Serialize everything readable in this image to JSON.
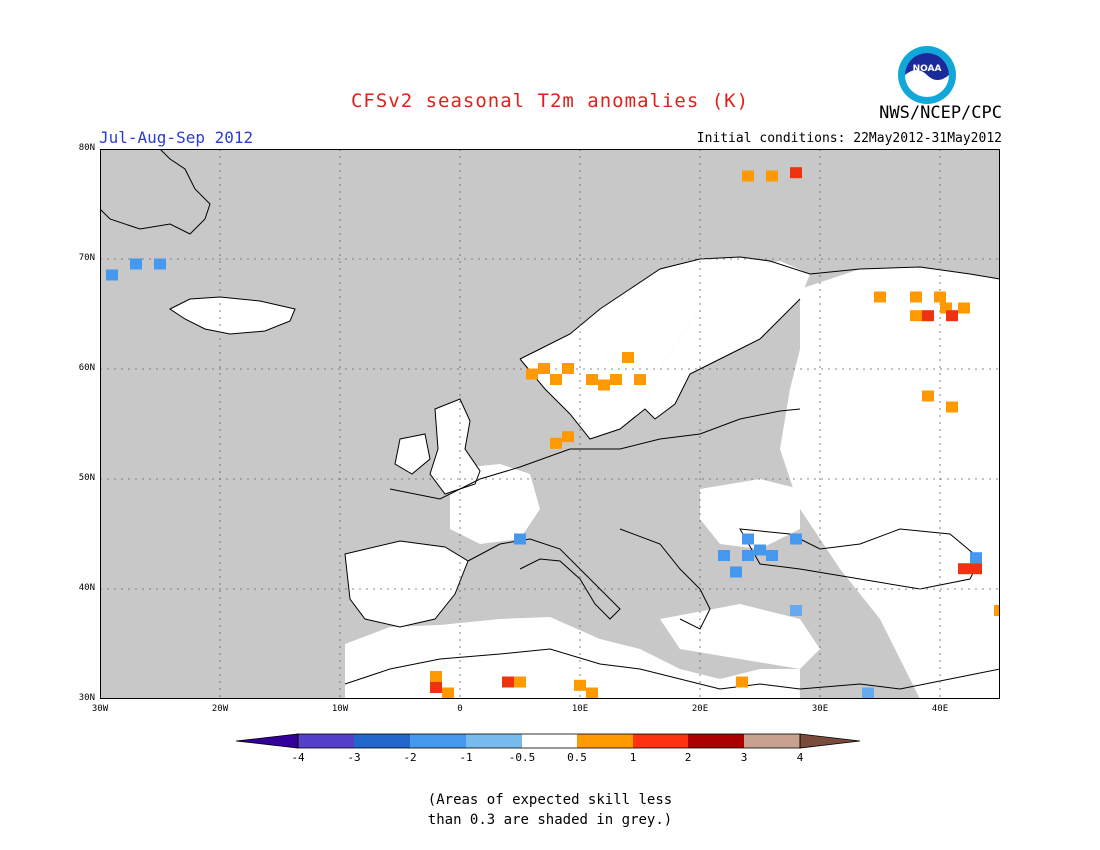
{
  "header": {
    "title": "CFSv2 seasonal T2m anomalies (K)",
    "organization": "NWS/NCEP/CPC",
    "season": "Jul-Aug-Sep 2012",
    "initial_conditions": "Initial conditions: 22May2012-31May2012",
    "logo_text": "NOAA"
  },
  "map": {
    "lon_range": [
      -30,
      45
    ],
    "lat_range": [
      30,
      80
    ],
    "lat_labels": [
      "80N",
      "70N",
      "60N",
      "50N",
      "40N",
      "30N"
    ],
    "lon_labels": [
      "30W",
      "20W",
      "10W",
      "0",
      "10E",
      "20E",
      "30E",
      "40E"
    ],
    "ocean_color": "#c8c8c8",
    "land_color": "#ffffff",
    "anomaly_cells": [
      {
        "lon": -29,
        "lat": 68.5,
        "color": "#4499ee"
      },
      {
        "lon": -27,
        "lat": 69.5,
        "color": "#4499ee"
      },
      {
        "lon": -25,
        "lat": 69.5,
        "color": "#4499ee"
      },
      {
        "lon": 6,
        "lat": 59.5,
        "color": "#ff9900"
      },
      {
        "lon": 7,
        "lat": 60.0,
        "color": "#ff9900"
      },
      {
        "lon": 8,
        "lat": 59.0,
        "color": "#ff9900"
      },
      {
        "lon": 9,
        "lat": 60.0,
        "color": "#ff9900"
      },
      {
        "lon": 11,
        "lat": 59.0,
        "color": "#ff9900"
      },
      {
        "lon": 12,
        "lat": 58.5,
        "color": "#ff9900"
      },
      {
        "lon": 13,
        "lat": 59.0,
        "color": "#ff9900"
      },
      {
        "lon": 14,
        "lat": 61.0,
        "color": "#ff9900"
      },
      {
        "lon": 15,
        "lat": 59.0,
        "color": "#ff9900"
      },
      {
        "lon": 8,
        "lat": 53.2,
        "color": "#ff9900"
      },
      {
        "lon": 9,
        "lat": 53.8,
        "color": "#ff9900"
      },
      {
        "lon": 24,
        "lat": 77.5,
        "color": "#ff9900"
      },
      {
        "lon": 26,
        "lat": 77.5,
        "color": "#ff9900"
      },
      {
        "lon": 28,
        "lat": 77.8,
        "color": "#ee3311"
      },
      {
        "lon": 35,
        "lat": 66.5,
        "color": "#ff9900"
      },
      {
        "lon": 38,
        "lat": 66.5,
        "color": "#ff9900"
      },
      {
        "lon": 40,
        "lat": 66.5,
        "color": "#ff9900"
      },
      {
        "lon": 38,
        "lat": 64.8,
        "color": "#ff9900"
      },
      {
        "lon": 39,
        "lat": 64.8,
        "color": "#ee3311"
      },
      {
        "lon": 40.5,
        "lat": 65.5,
        "color": "#ff9900"
      },
      {
        "lon": 41,
        "lat": 64.8,
        "color": "#ee3311"
      },
      {
        "lon": 42,
        "lat": 65.5,
        "color": "#ff9900"
      },
      {
        "lon": 39,
        "lat": 57.5,
        "color": "#ff9900"
      },
      {
        "lon": 41,
        "lat": 56.5,
        "color": "#ff9900"
      },
      {
        "lon": 5,
        "lat": 44.5,
        "color": "#4499ee"
      },
      {
        "lon": 22,
        "lat": 43.0,
        "color": "#4499ee"
      },
      {
        "lon": 24,
        "lat": 44.5,
        "color": "#4499ee"
      },
      {
        "lon": 25,
        "lat": 43.5,
        "color": "#4499ee"
      },
      {
        "lon": 24,
        "lat": 43.0,
        "color": "#4499ee"
      },
      {
        "lon": 26,
        "lat": 43.0,
        "color": "#4499ee"
      },
      {
        "lon": 23,
        "lat": 41.5,
        "color": "#4499ee"
      },
      {
        "lon": 28,
        "lat": 44.5,
        "color": "#4499ee"
      },
      {
        "lon": 43,
        "lat": 42.8,
        "color": "#4499ee"
      },
      {
        "lon": 42,
        "lat": 41.8,
        "color": "#ee3311"
      },
      {
        "lon": 43,
        "lat": 41.8,
        "color": "#ee3311"
      },
      {
        "lon": 28,
        "lat": 38.0,
        "color": "#66aaee"
      },
      {
        "lon": 45,
        "lat": 38.0,
        "color": "#ff9900"
      },
      {
        "lon": -2,
        "lat": 32.0,
        "color": "#ff9900"
      },
      {
        "lon": -2,
        "lat": 31.0,
        "color": "#ee3311"
      },
      {
        "lon": -1,
        "lat": 30.5,
        "color": "#ff9900"
      },
      {
        "lon": 4,
        "lat": 31.5,
        "color": "#ee3311"
      },
      {
        "lon": 5,
        "lat": 31.5,
        "color": "#ff9900"
      },
      {
        "lon": 10,
        "lat": 31.2,
        "color": "#ff9900"
      },
      {
        "lon": 11,
        "lat": 30.5,
        "color": "#ff9900"
      },
      {
        "lon": 23.5,
        "lat": 31.5,
        "color": "#ff9900"
      },
      {
        "lon": 34,
        "lat": 30.5,
        "color": "#66aaee"
      }
    ]
  },
  "colorbar": {
    "colors": [
      "#330099",
      "#5540cc",
      "#2266cc",
      "#4499ee",
      "#77bbee",
      "#ffffff",
      "#ff9900",
      "#ff3311",
      "#aa0000",
      "#c8a090",
      "#7a4a3a"
    ],
    "labels": [
      "-4",
      "-3",
      "-2",
      "-1",
      "-0.5",
      "0.5",
      "1",
      "2",
      "3",
      "4"
    ]
  },
  "note": {
    "line1": "(Areas of expected skill less",
    "line2": "than 0.3 are shaded in grey.)"
  }
}
